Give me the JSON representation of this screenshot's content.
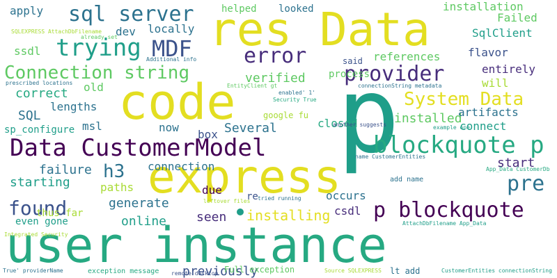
{
  "colors": {
    "background": "#ffffff",
    "yellow": "#e3de21",
    "lime": "#a8db34",
    "green": "#5ec962",
    "teal": "#1f9e89",
    "seagreen": "#26a982",
    "blue": "#2c728e",
    "slate": "#3b528b",
    "indigo": "#472d7b",
    "purple": "#440154"
  },
  "words": [
    "user instance",
    "code",
    "p",
    "res Data",
    "express",
    "Data CustomerModel",
    "blockquote p",
    "p blockquote",
    "Connection string",
    "provider",
    "sql server",
    "trying",
    "MDF",
    "error",
    "found",
    "h3",
    "pre",
    "System Data",
    "installed",
    "installing",
    "now",
    "Several",
    "box",
    "previously",
    "seen",
    "online",
    "generate",
    "paths",
    "starting",
    "failure",
    "connection",
    "lengths",
    "correct",
    "old",
    "SQL",
    "msl",
    "sp_configure",
    "ssdl",
    "dev",
    "locally",
    "apply",
    "helped",
    "looked",
    "process",
    "closed",
    "said",
    "references",
    "verified",
    "will",
    "entirely",
    "flavor",
    "SqlClient",
    "Failed",
    "installation",
    "artifacts",
    "connect",
    "start",
    "csdl",
    "occurs",
    "due",
    "google fu",
    "re",
    "thus far",
    "even gone",
    "Full exception",
    "exception message",
    "remote desktop",
    "Source SQLEXPRESS",
    "lt add",
    "CustomerEntities connectionString",
    "True' providerName",
    "Integrated Security",
    "AttachDbFilename App_Data",
    "App_Data CustomerDb",
    "add name",
    "name CustomerEntities",
    "example one",
    "connectionString metadata",
    "enabled' 1'",
    "Security True",
    "another suggests",
    "EntityClient gt",
    "prescribed locations",
    "Additional info",
    "already set",
    "leftover files",
    "tried running",
    "SQLEXPRESS AttachDbFilename"
  ]
}
